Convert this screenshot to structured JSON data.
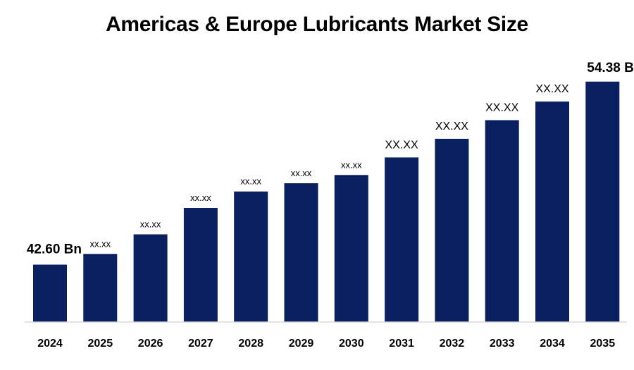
{
  "chart_data": {
    "type": "bar",
    "title": "Americas & Europe Lubricants Market Size",
    "xlabel": "",
    "ylabel": "",
    "categories": [
      "2024",
      "2025",
      "2026",
      "2027",
      "2028",
      "2029",
      "2030",
      "2031",
      "2032",
      "2033",
      "2034",
      "2035"
    ],
    "values": [
      42.6,
      43.29,
      44.55,
      46.25,
      47.31,
      47.84,
      48.37,
      49.5,
      50.7,
      51.9,
      53.1,
      54.38
    ],
    "data_labels": [
      "42.60 Bn",
      "xx.xx",
      "xx.xx",
      "xx.xx",
      "xx.xx",
      "xx.xx",
      "xx.xx",
      "XX.XX",
      "XX.XX",
      "XX.XX",
      "XX.XX",
      "54.38 Bn"
    ],
    "ylim": [
      38.9,
      54.6
    ],
    "grid": false,
    "legend": "none",
    "bar_color": "#0b2060"
  }
}
